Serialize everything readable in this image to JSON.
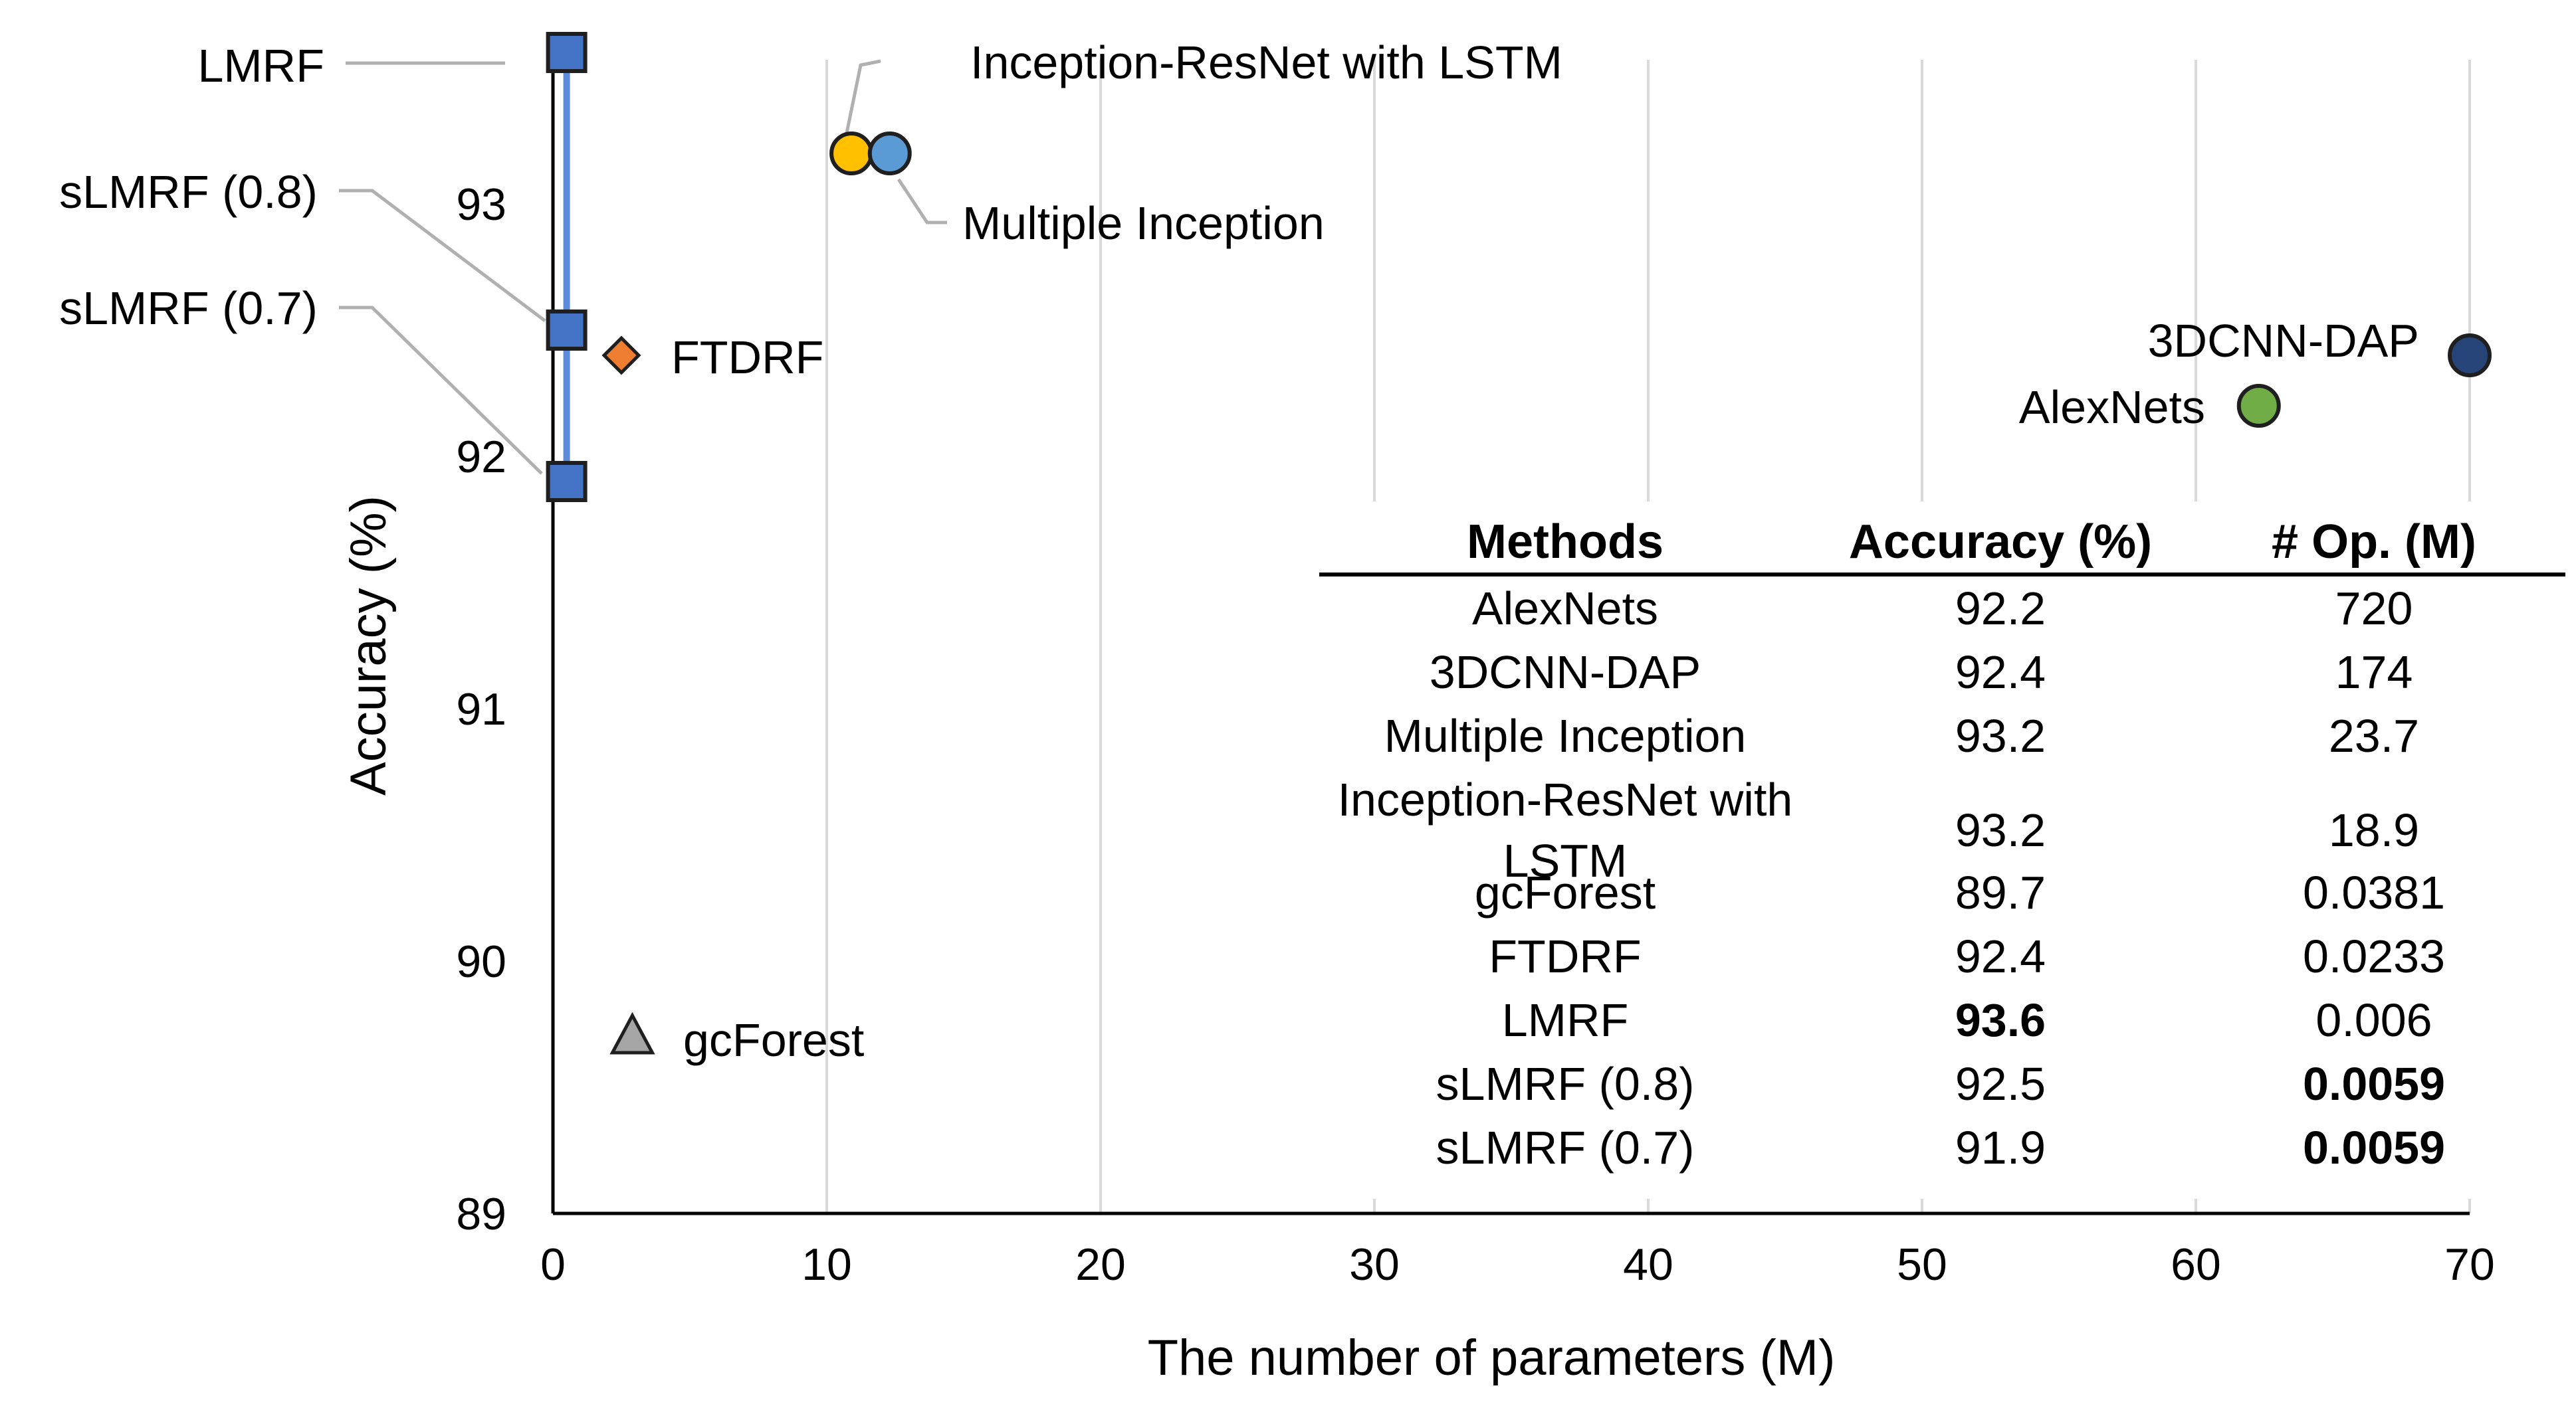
{
  "chart_data": {
    "type": "scatter",
    "xlabel": "The number of parameters (M)",
    "ylabel": "Accuracy (%)",
    "xlim": [
      0,
      70
    ],
    "ylim": [
      89,
      93.6
    ],
    "x_ticks": [
      0,
      10,
      20,
      30,
      40,
      50,
      60,
      70
    ],
    "y_ticks": [
      89,
      90,
      91,
      92,
      93
    ],
    "grid": "vertical",
    "colors": {
      "lmrf_series": "#4472c4",
      "lmrf_line": "#5b8bd9",
      "ftdrf": "#ed7d31",
      "gcforest": "#a5a5a5",
      "inception_resnet_lstm": "#ffc000",
      "multiple_inception": "#5b9bd5",
      "alexnets": "#70ad47",
      "3dcnn_dap": "#264478",
      "marker_edge": "#1f1f1f",
      "leader_line": "#b0b0b0",
      "grid": "#d9d9d9"
    },
    "series": [
      {
        "name": "LMRF series",
        "marker": "square",
        "connected": true,
        "points": [
          {
            "label": "LMRF",
            "x": 0.5,
            "y": 93.6
          },
          {
            "label": "sLMRF (0.8)",
            "x": 0.5,
            "y": 92.5
          },
          {
            "label": "sLMRF (0.7)",
            "x": 0.5,
            "y": 91.9
          }
        ]
      },
      {
        "name": "FTDRF",
        "marker": "diamond",
        "points": [
          {
            "label": "FTDRF",
            "x": 2.5,
            "y": 92.4
          }
        ]
      },
      {
        "name": "gcForest",
        "marker": "triangle",
        "points": [
          {
            "label": "gcForest",
            "x": 2.9,
            "y": 89.7
          }
        ]
      },
      {
        "name": "Inception-ResNet with LSTM",
        "marker": "circle",
        "points": [
          {
            "label": "Inception-ResNet with LSTM",
            "x": 10.9,
            "y": 93.2
          }
        ]
      },
      {
        "name": "Multiple Inception",
        "marker": "circle",
        "points": [
          {
            "label": "Multiple Inception",
            "x": 12.3,
            "y": 93.2
          }
        ]
      },
      {
        "name": "AlexNets",
        "marker": "circle",
        "points": [
          {
            "label": "AlexNets",
            "x": 62.3,
            "y": 92.2
          }
        ]
      },
      {
        "name": "3DCNN-DAP",
        "marker": "circle",
        "points": [
          {
            "label": "3DCNN-DAP",
            "x": 70,
            "y": 92.4
          }
        ]
      }
    ],
    "table": {
      "headers": [
        "Methods",
        "Accuracy (%)",
        "# Op. (M)"
      ],
      "rows": [
        {
          "method": [
            "AlexNets"
          ],
          "accuracy": "92.2",
          "ops": "720",
          "bold_accuracy": false,
          "bold_ops": false
        },
        {
          "method": [
            "3DCNN-DAP"
          ],
          "accuracy": "92.4",
          "ops": "174",
          "bold_accuracy": false,
          "bold_ops": false
        },
        {
          "method": [
            "Multiple Inception"
          ],
          "accuracy": "93.2",
          "ops": "23.7",
          "bold_accuracy": false,
          "bold_ops": false
        },
        {
          "method": [
            "Inception-ResNet with",
            "LSTM"
          ],
          "accuracy": "93.2",
          "ops": "18.9",
          "bold_accuracy": false,
          "bold_ops": false
        },
        {
          "method": [
            "gcForest"
          ],
          "accuracy": "89.7",
          "ops": "0.0381",
          "bold_accuracy": false,
          "bold_ops": false
        },
        {
          "method": [
            "FTDRF"
          ],
          "accuracy": "92.4",
          "ops": "0.0233",
          "bold_accuracy": false,
          "bold_ops": false
        },
        {
          "method": [
            "LMRF"
          ],
          "accuracy": "93.6",
          "ops": "0.006",
          "bold_accuracy": true,
          "bold_ops": false
        },
        {
          "method": [
            "sLMRF (0.8)"
          ],
          "accuracy": "92.5",
          "ops": "0.0059",
          "bold_accuracy": false,
          "bold_ops": true
        },
        {
          "method": [
            "sLMRF (0.7)"
          ],
          "accuracy": "91.9",
          "ops": "0.0059",
          "bold_accuracy": false,
          "bold_ops": true
        }
      ]
    }
  }
}
